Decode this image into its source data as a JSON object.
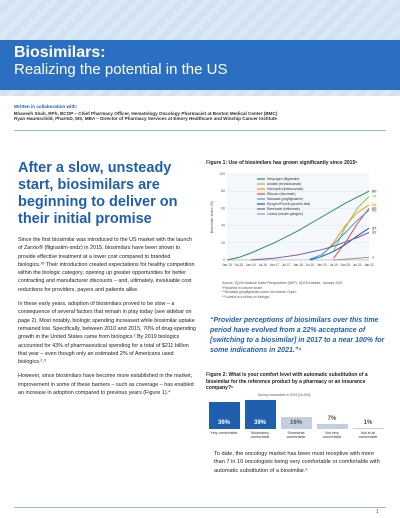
{
  "header": {
    "title": "Biosimilars:",
    "subtitle": "Realizing the potential in the US",
    "collab_label": "Written in collaboration with:",
    "authors": [
      "Bhavesh Shah, RPh, BCOP – Chief Pharmacy Officer, Hematology Oncology Pharmacist at Boston Medical Center (BMC)",
      "Ryan Haumschild, PharmD, MS, MBA – Director of Pharmacy Services at Emory Healthcare and Winship Cancer Institute"
    ]
  },
  "article": {
    "heading": "After a slow, unsteady start, biosimilars are beginning to deliver on their initial promise",
    "paragraphs": [
      "Since the first biosimilar was introduced to the US market with the launch of Zarxio® (filgrastim-sndz) in 2015, biosimilars have been shown to provide effective treatment at a lower cost compared to branded biologics.¹⁰ Their introduction created expectations for healthy competition within the biologic category, opening up greater opportunities for better contracting and manufacturer discounts – and, ultimately, invaluable cost reductions for providers, payers and patients alike.",
      "In these early years, adoption of biosimilars proved to be slow – a consequence of several factors that remain in play today (see sidebar on page 2). Most notably, biologic spending increased while biosimilar uptake remained low. Specifically, between 2010 and 2015, 70% of drug-spending growth in the United States came from biologics.² By 2019 biologics accounted for 43% of pharmaceutical spending for a total of $211 billion that year – even though only an estimated 2% of Americans used biologics.²˒³",
      "However, since biosimilars have become more established in the market, improvement in some of these barriers – such as coverage – has enabled an increase in adoption compared to previous years (Figure 1).⁴"
    ]
  },
  "figure1": {
    "type": "line",
    "title": "Figure 1: Use of biosimilars has grown significantly since 2015⁵",
    "y_label": "Biosimilar share (%)",
    "categories": [
      "Jan-15",
      "Jul-15",
      "Jan-16",
      "Jul-16",
      "Jan-17",
      "Jul-17",
      "Jan-18",
      "Jul-18",
      "Jan-19",
      "Jul-19",
      "Jan-20",
      "Jul-20",
      "Jan-21"
    ],
    "ylim": [
      0,
      100
    ],
    "yticks": [
      0,
      20,
      40,
      60,
      80,
      100
    ],
    "series": [
      {
        "name": "Neupogen (filgrastim)",
        "color": "#2e8b57",
        "values": [
          0,
          3,
          8,
          14,
          20,
          27,
          34,
          42,
          50,
          58,
          66,
          73,
          80
        ]
      },
      {
        "name": "Avastin (bevacizumab)",
        "color": "#8cc63f",
        "values": [
          null,
          null,
          null,
          null,
          null,
          null,
          null,
          null,
          null,
          10,
          38,
          60,
          74
        ]
      },
      {
        "name": "Herceptin (trastuzumab)",
        "color": "#f39c12",
        "values": [
          null,
          null,
          null,
          null,
          null,
          null,
          null,
          null,
          5,
          20,
          40,
          55,
          64
        ]
      },
      {
        "name": "Rituxan (rituximab)",
        "color": "#e74c3c",
        "values": [
          null,
          null,
          null,
          null,
          null,
          null,
          null,
          null,
          null,
          2,
          20,
          42,
          60
        ]
      },
      {
        "name": "Neulasta (pegfilgrastim)",
        "color": "#3aa0d8",
        "values": [
          null,
          null,
          null,
          null,
          null,
          null,
          null,
          1,
          6,
          18,
          32,
          46,
          58
        ]
      },
      {
        "name": "Epogen/Procrit (epoetin alfa)",
        "color": "#1f5fae",
        "values": [
          null,
          null,
          null,
          null,
          null,
          null,
          null,
          0,
          4,
          10,
          18,
          28,
          37
        ]
      },
      {
        "name": "Remicade (infliximab)",
        "color": "#7d5ba6",
        "values": [
          null,
          null,
          0,
          1,
          2,
          4,
          6,
          9,
          12,
          16,
          21,
          26,
          32
        ]
      },
      {
        "name": "Lantus (insulin glargine)",
        "color": "#999999",
        "values": [
          null,
          null,
          null,
          null,
          null,
          null,
          null,
          null,
          null,
          0,
          1,
          2,
          3
        ]
      }
    ],
    "source": "Source: IQVIA National Sales Perspectives (NSP), IQVIA Institute, January 2021",
    "notes": [
      "*Reported in volume share",
      "**Neulasta (pegfilgrastim) does not include Onpro",
      "***Lantus is a follow-on biologic"
    ]
  },
  "quote": "“Provider perceptions of biosimilars over this time period have evolved from a 22% acceptance of [switching to a biosimilar] in 2017 to a near 100% for some indications in 2021.”⁴",
  "figure2": {
    "type": "bar",
    "title": "Figure 2: What is your comfort level with automatic substitution of a biosimilar for the reference product by a pharmacy or an insurance company?⁶",
    "subtitle": "Survey conducted in 2019 (N=403)",
    "categories": [
      "Very comfortable",
      "Moderately comfortable",
      "Somewhat comfortable",
      "Not very comfortable",
      "Not at all comfortable"
    ],
    "values": [
      36,
      39,
      16,
      7,
      1
    ],
    "value_labels": [
      "36%",
      "39%",
      "16%",
      "7%",
      "1%"
    ],
    "colors": [
      "#1f5fae",
      "#1f5fae",
      "#c3cfdf",
      "#c3cfdf",
      "#c3cfdf"
    ]
  },
  "closing": "To date, the oncology market has been most receptive with more than 7 in 10 oncologists being very comfortable or comfortable with automatic substitution of a biosimilar.⁶",
  "footer": {
    "page": "1"
  }
}
